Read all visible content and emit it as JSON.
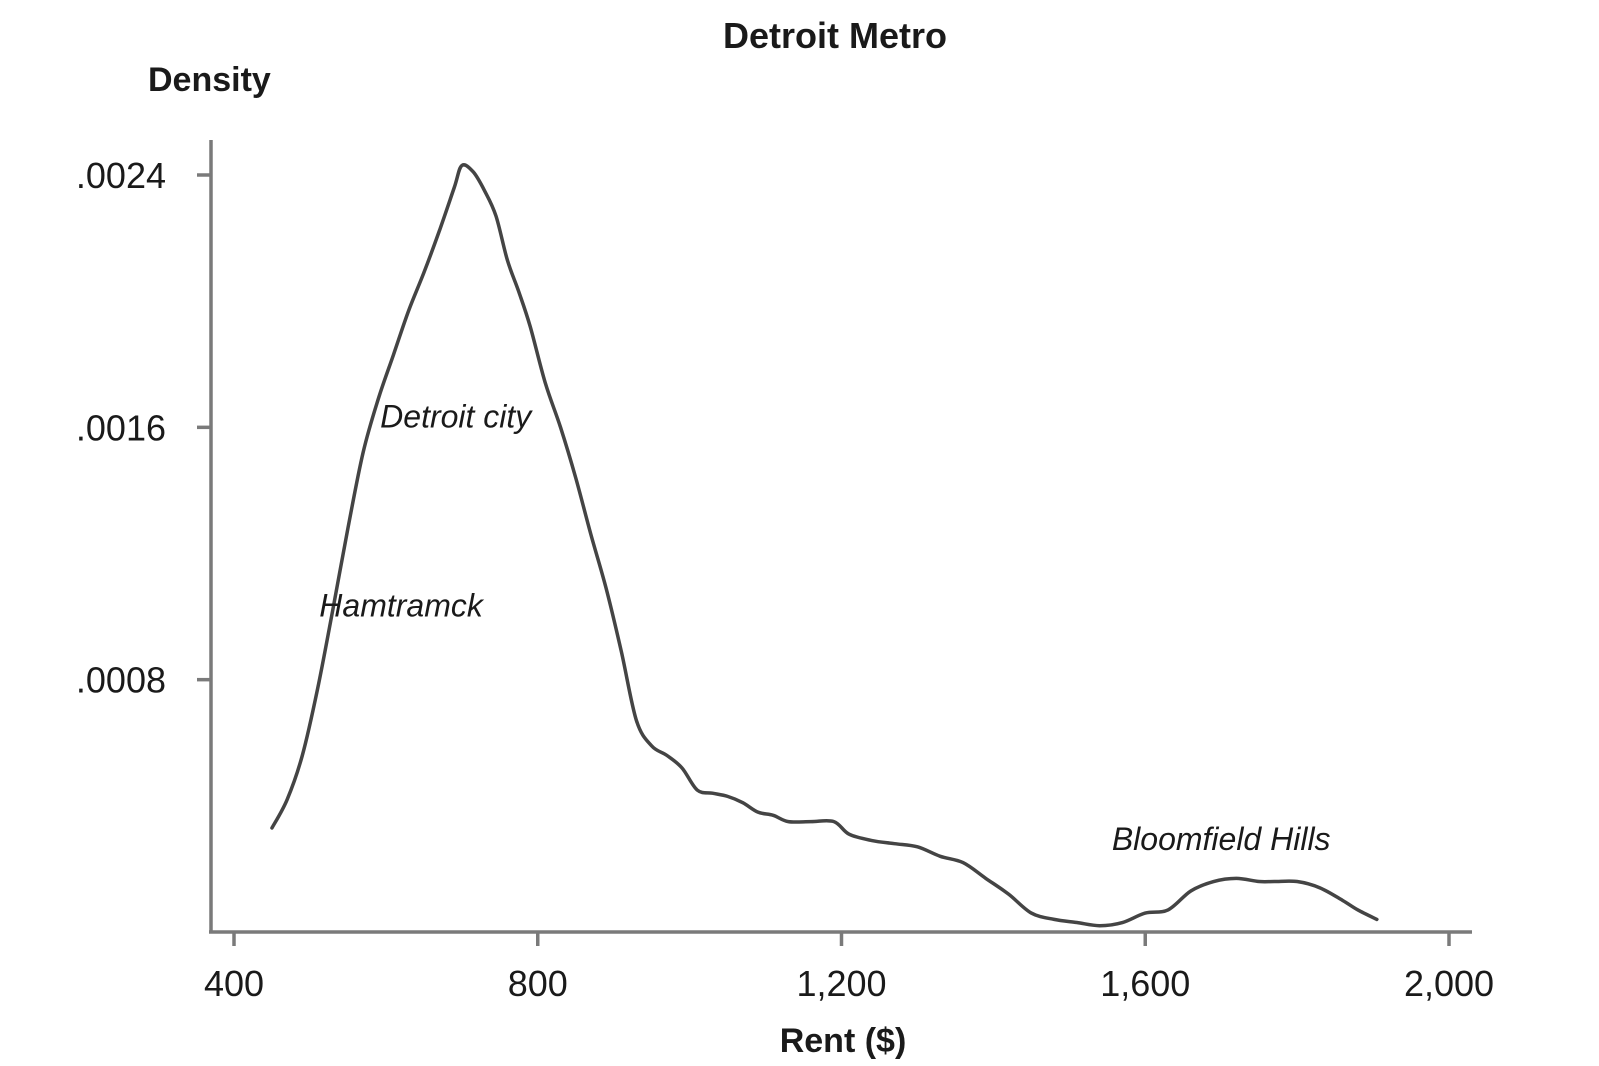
{
  "chart_data": {
    "type": "line",
    "title": "Detroit Metro",
    "ylabel": "Density",
    "xlabel": "Rent ($)",
    "xlim": [
      370,
      2040
    ],
    "ylim": [
      0,
      0.0025
    ],
    "x_ticks": [
      {
        "value": 400,
        "label": "400"
      },
      {
        "value": 800,
        "label": "800"
      },
      {
        "value": 1200,
        "label": "1,200"
      },
      {
        "value": 1600,
        "label": "1,600"
      },
      {
        "value": 2000,
        "label": "2,000"
      }
    ],
    "y_ticks": [
      {
        "value": 0.0008,
        "label": ".0008"
      },
      {
        "value": 0.0016,
        "label": ".0016"
      },
      {
        "value": 0.0024,
        "label": ".0024"
      }
    ],
    "grid": false,
    "legend": "none",
    "series": [
      {
        "color": "#444444",
        "points": [
          [
            450,
            0.00033
          ],
          [
            470,
            0.00042
          ],
          [
            490,
            0.00056
          ],
          [
            510,
            0.00077
          ],
          [
            530,
            0.00102
          ],
          [
            550,
            0.00128
          ],
          [
            570,
            0.00152
          ],
          [
            590,
            0.00169
          ],
          [
            610,
            0.00183
          ],
          [
            630,
            0.00197
          ],
          [
            650,
            0.00209
          ],
          [
            670,
            0.00222
          ],
          [
            690,
            0.00236
          ],
          [
            700,
            0.00243
          ],
          [
            715,
            0.00241
          ],
          [
            730,
            0.00235
          ],
          [
            745,
            0.00227
          ],
          [
            760,
            0.00213
          ],
          [
            775,
            0.00203
          ],
          [
            790,
            0.00192
          ],
          [
            810,
            0.00174
          ],
          [
            830,
            0.0016
          ],
          [
            850,
            0.00144
          ],
          [
            870,
            0.00126
          ],
          [
            890,
            0.00109
          ],
          [
            910,
            0.00089
          ],
          [
            930,
            0.00067
          ],
          [
            950,
            0.00059
          ],
          [
            970,
            0.00056
          ],
          [
            990,
            0.00052
          ],
          [
            1010,
            0.00045
          ],
          [
            1030,
            0.00044
          ],
          [
            1050,
            0.00043
          ],
          [
            1070,
            0.00041
          ],
          [
            1090,
            0.00038
          ],
          [
            1110,
            0.00037
          ],
          [
            1130,
            0.00035
          ],
          [
            1160,
            0.00035
          ],
          [
            1190,
            0.00035
          ],
          [
            1210,
            0.00031
          ],
          [
            1240,
            0.00029
          ],
          [
            1270,
            0.00028
          ],
          [
            1300,
            0.00027
          ],
          [
            1330,
            0.00024
          ],
          [
            1360,
            0.00022
          ],
          [
            1390,
            0.00017
          ],
          [
            1420,
            0.00012
          ],
          [
            1450,
            6e-05
          ],
          [
            1480,
            4e-05
          ],
          [
            1510,
            3e-05
          ],
          [
            1540,
            2e-05
          ],
          [
            1570,
            3e-05
          ],
          [
            1600,
            6e-05
          ],
          [
            1630,
            7e-05
          ],
          [
            1660,
            0.00013
          ],
          [
            1690,
            0.00016
          ],
          [
            1720,
            0.00017
          ],
          [
            1750,
            0.00016
          ],
          [
            1770,
            0.00016
          ],
          [
            1800,
            0.00016
          ],
          [
            1830,
            0.00014
          ],
          [
            1860,
            0.0001
          ],
          [
            1880,
            7e-05
          ],
          [
            1905,
            4e-05
          ]
        ]
      }
    ],
    "annotations": [
      {
        "text": "Detroit city",
        "x": 692,
        "y": 0.0016
      },
      {
        "text": "Hamtramck",
        "x": 620,
        "y": 0.001
      },
      {
        "text": "Bloomfield Hills",
        "x": 1700,
        "y": 0.00026
      }
    ]
  }
}
